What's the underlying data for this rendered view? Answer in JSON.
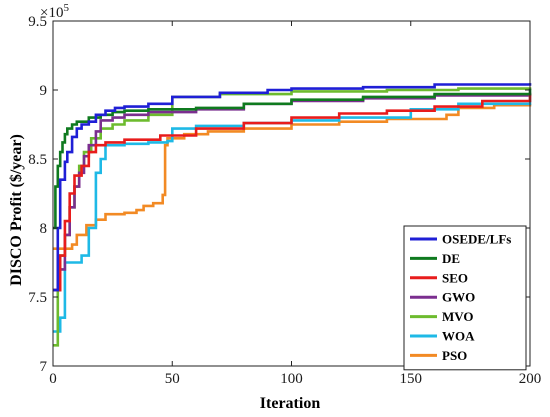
{
  "chart_data": {
    "type": "line",
    "xlabel": "Iteration",
    "ylabel": "DISCO Profit ($/year)",
    "y_multiplier_base": "×10",
    "y_multiplier_exp": "5",
    "xlim": [
      0,
      200
    ],
    "ylim": [
      7,
      9.5
    ],
    "x_ticks": [
      "0",
      "50",
      "100",
      "150",
      "200"
    ],
    "y_ticks": [
      "7",
      "7.5",
      "8",
      "8.5",
      "9",
      "9.5"
    ],
    "grid": false,
    "legend_position": "bottom-right",
    "series": [
      {
        "name": "OSEDE/LFs",
        "color": "#1f1fd6",
        "points": [
          [
            0,
            7.55
          ],
          [
            2,
            8.0
          ],
          [
            3,
            8.35
          ],
          [
            5,
            8.48
          ],
          [
            6,
            8.55
          ],
          [
            8,
            8.66
          ],
          [
            10,
            8.72
          ],
          [
            12,
            8.75
          ],
          [
            15,
            8.77
          ],
          [
            18,
            8.82
          ],
          [
            22,
            8.85
          ],
          [
            26,
            8.87
          ],
          [
            30,
            8.88
          ],
          [
            40,
            8.9
          ],
          [
            50,
            8.95
          ],
          [
            70,
            8.98
          ],
          [
            90,
            9.0
          ],
          [
            100,
            9.01
          ],
          [
            130,
            9.02
          ],
          [
            160,
            9.04
          ],
          [
            200,
            9.05
          ]
        ]
      },
      {
        "name": "DE",
        "color": "#0f7a1f",
        "points": [
          [
            0,
            8.0
          ],
          [
            1,
            8.3
          ],
          [
            2,
            8.45
          ],
          [
            3,
            8.55
          ],
          [
            4,
            8.62
          ],
          [
            5,
            8.68
          ],
          [
            6,
            8.72
          ],
          [
            8,
            8.75
          ],
          [
            10,
            8.77
          ],
          [
            15,
            8.8
          ],
          [
            20,
            8.82
          ],
          [
            25,
            8.84
          ],
          [
            30,
            8.85
          ],
          [
            40,
            8.86
          ],
          [
            60,
            8.87
          ],
          [
            80,
            8.9
          ],
          [
            100,
            8.93
          ],
          [
            130,
            8.95
          ],
          [
            160,
            8.97
          ],
          [
            200,
            9.01
          ]
        ]
      },
      {
        "name": "SEO",
        "color": "#e81c1c",
        "points": [
          [
            0,
            7.55
          ],
          [
            3,
            7.8
          ],
          [
            5,
            8.05
          ],
          [
            7,
            8.25
          ],
          [
            9,
            8.38
          ],
          [
            12,
            8.45
          ],
          [
            15,
            8.55
          ],
          [
            18,
            8.6
          ],
          [
            22,
            8.62
          ],
          [
            30,
            8.64
          ],
          [
            45,
            8.67
          ],
          [
            60,
            8.72
          ],
          [
            80,
            8.76
          ],
          [
            100,
            8.8
          ],
          [
            120,
            8.83
          ],
          [
            140,
            8.85
          ],
          [
            160,
            8.88
          ],
          [
            180,
            8.92
          ],
          [
            200,
            8.97
          ]
        ]
      },
      {
        "name": "GWO",
        "color": "#7b2e8f",
        "points": [
          [
            0,
            7.55
          ],
          [
            3,
            7.7
          ],
          [
            5,
            7.95
          ],
          [
            7,
            8.15
          ],
          [
            9,
            8.3
          ],
          [
            11,
            8.4
          ],
          [
            13,
            8.52
          ],
          [
            15,
            8.6
          ],
          [
            18,
            8.7
          ],
          [
            20,
            8.78
          ],
          [
            25,
            8.8
          ],
          [
            30,
            8.82
          ],
          [
            40,
            8.84
          ],
          [
            60,
            8.86
          ],
          [
            80,
            8.9
          ],
          [
            100,
            8.92
          ],
          [
            130,
            8.94
          ],
          [
            160,
            8.96
          ],
          [
            200,
            8.98
          ]
        ]
      },
      {
        "name": "MVO",
        "color": "#6dbb2e",
        "points": [
          [
            0,
            7.15
          ],
          [
            2,
            7.55
          ],
          [
            3,
            7.8
          ],
          [
            5,
            7.95
          ],
          [
            7,
            8.15
          ],
          [
            9,
            8.3
          ],
          [
            11,
            8.45
          ],
          [
            13,
            8.55
          ],
          [
            16,
            8.65
          ],
          [
            20,
            8.72
          ],
          [
            25,
            8.75
          ],
          [
            30,
            8.78
          ],
          [
            40,
            8.82
          ],
          [
            50,
            8.95
          ],
          [
            70,
            8.97
          ],
          [
            100,
            8.99
          ],
          [
            140,
            9.0
          ],
          [
            170,
            9.01
          ],
          [
            200,
            9.02
          ]
        ]
      },
      {
        "name": "WOA",
        "color": "#1eb9e6",
        "points": [
          [
            0,
            7.25
          ],
          [
            3,
            7.35
          ],
          [
            5,
            7.75
          ],
          [
            12,
            7.8
          ],
          [
            15,
            8.0
          ],
          [
            18,
            8.4
          ],
          [
            20,
            8.5
          ],
          [
            22,
            8.6
          ],
          [
            30,
            8.61
          ],
          [
            40,
            8.62
          ],
          [
            48,
            8.63
          ],
          [
            50,
            8.72
          ],
          [
            60,
            8.74
          ],
          [
            80,
            8.76
          ],
          [
            100,
            8.78
          ],
          [
            120,
            8.8
          ],
          [
            150,
            8.86
          ],
          [
            170,
            8.9
          ],
          [
            200,
            8.95
          ]
        ]
      },
      {
        "name": "PSO",
        "color": "#f28a24",
        "points": [
          [
            0,
            7.85
          ],
          [
            5,
            7.85
          ],
          [
            8,
            7.88
          ],
          [
            10,
            7.95
          ],
          [
            14,
            8.02
          ],
          [
            18,
            8.06
          ],
          [
            22,
            8.1
          ],
          [
            30,
            8.11
          ],
          [
            35,
            8.13
          ],
          [
            38,
            8.16
          ],
          [
            42,
            8.18
          ],
          [
            46,
            8.24
          ],
          [
            47,
            8.6
          ],
          [
            48,
            8.65
          ],
          [
            55,
            8.68
          ],
          [
            65,
            8.7
          ],
          [
            80,
            8.72
          ],
          [
            100,
            8.75
          ],
          [
            120,
            8.77
          ],
          [
            140,
            8.79
          ],
          [
            165,
            8.82
          ],
          [
            170,
            8.87
          ],
          [
            185,
            8.89
          ],
          [
            200,
            8.9
          ]
        ]
      }
    ]
  }
}
